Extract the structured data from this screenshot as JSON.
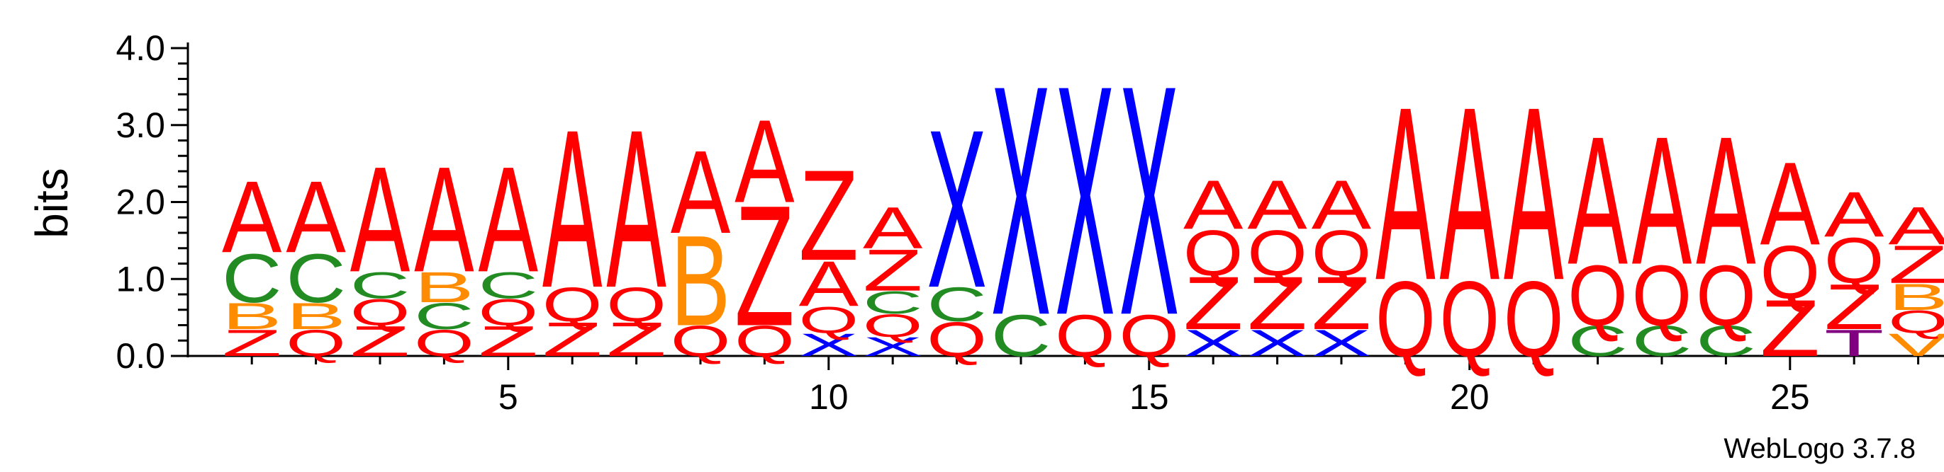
{
  "chart_data": {
    "type": "sequence-logo",
    "ylabel": "bits",
    "ylim": [
      0,
      4.0
    ],
    "yticks": [
      "0.0",
      "1.0",
      "2.0",
      "3.0",
      "4.0"
    ],
    "xticks": [
      5,
      10,
      15,
      20,
      25
    ],
    "credit": "WebLogo 3.7.8",
    "colors": {
      "A": "#ff0000",
      "Q": "#ff0000",
      "Z": "#ff0000",
      "B": "#ff8c00",
      "C": "#228b22",
      "X": "#0000ff",
      "T": "#800080",
      "V": "#ff8c00"
    },
    "positions": [
      {
        "pos": 1,
        "stack": [
          {
            "letter": "Z",
            "bits": 0.35
          },
          {
            "letter": "B",
            "bits": 0.35
          },
          {
            "letter": "C",
            "bits": 0.65
          },
          {
            "letter": "A",
            "bits": 0.95
          }
        ]
      },
      {
        "pos": 2,
        "stack": [
          {
            "letter": "Q",
            "bits": 0.35
          },
          {
            "letter": "B",
            "bits": 0.35
          },
          {
            "letter": "C",
            "bits": 0.65
          },
          {
            "letter": "A",
            "bits": 0.95
          }
        ]
      },
      {
        "pos": 3,
        "stack": [
          {
            "letter": "Z",
            "bits": 0.4
          },
          {
            "letter": "Q",
            "bits": 0.35
          },
          {
            "letter": "C",
            "bits": 0.35
          },
          {
            "letter": "A",
            "bits": 1.4
          }
        ]
      },
      {
        "pos": 4,
        "stack": [
          {
            "letter": "Q",
            "bits": 0.35
          },
          {
            "letter": "C",
            "bits": 0.35
          },
          {
            "letter": "B",
            "bits": 0.4
          },
          {
            "letter": "A",
            "bits": 1.4
          }
        ]
      },
      {
        "pos": 5,
        "stack": [
          {
            "letter": "Z",
            "bits": 0.4
          },
          {
            "letter": "Q",
            "bits": 0.35
          },
          {
            "letter": "C",
            "bits": 0.35
          },
          {
            "letter": "A",
            "bits": 1.4
          }
        ]
      },
      {
        "pos": 6,
        "stack": [
          {
            "letter": "Z",
            "bits": 0.45
          },
          {
            "letter": "Q",
            "bits": 0.45
          },
          {
            "letter": "A",
            "bits": 2.1
          }
        ]
      },
      {
        "pos": 7,
        "stack": [
          {
            "letter": "Z",
            "bits": 0.45
          },
          {
            "letter": "Q",
            "bits": 0.45
          },
          {
            "letter": "A",
            "bits": 2.1
          }
        ]
      },
      {
        "pos": 8,
        "stack": [
          {
            "letter": "Q",
            "bits": 0.4
          },
          {
            "letter": "B",
            "bits": 1.2
          },
          {
            "letter": "A",
            "bits": 1.1
          }
        ]
      },
      {
        "pos": 9,
        "stack": [
          {
            "letter": "Q",
            "bits": 0.4
          },
          {
            "letter": "Z",
            "bits": 1.6
          },
          {
            "letter": "A",
            "bits": 1.1
          }
        ]
      },
      {
        "pos": 10,
        "stack": [
          {
            "letter": "X",
            "bits": 0.3
          },
          {
            "letter": "Q",
            "bits": 0.35
          },
          {
            "letter": "A",
            "bits": 0.6
          },
          {
            "letter": "Z",
            "bits": 1.2
          }
        ]
      },
      {
        "pos": 11,
        "stack": [
          {
            "letter": "X",
            "bits": 0.25
          },
          {
            "letter": "Q",
            "bits": 0.3
          },
          {
            "letter": "C",
            "bits": 0.3
          },
          {
            "letter": "Z",
            "bits": 0.55
          },
          {
            "letter": "A",
            "bits": 0.55
          }
        ]
      },
      {
        "pos": 12,
        "stack": [
          {
            "letter": "Q",
            "bits": 0.45
          },
          {
            "letter": "C",
            "bits": 0.45
          },
          {
            "letter": "X",
            "bits": 2.1
          }
        ]
      },
      {
        "pos": 13,
        "stack": [
          {
            "letter": "C",
            "bits": 0.55
          },
          {
            "letter": "X",
            "bits": 3.05
          }
        ]
      },
      {
        "pos": 14,
        "stack": [
          {
            "letter": "Q",
            "bits": 0.55
          },
          {
            "letter": "X",
            "bits": 3.05
          }
        ]
      },
      {
        "pos": 15,
        "stack": [
          {
            "letter": "Q",
            "bits": 0.55
          },
          {
            "letter": "X",
            "bits": 3.05
          }
        ]
      },
      {
        "pos": 16,
        "stack": [
          {
            "letter": "X",
            "bits": 0.35
          },
          {
            "letter": "Z",
            "bits": 0.7
          },
          {
            "letter": "Q",
            "bits": 0.6
          },
          {
            "letter": "A",
            "bits": 0.65
          }
        ]
      },
      {
        "pos": 17,
        "stack": [
          {
            "letter": "X",
            "bits": 0.35
          },
          {
            "letter": "Z",
            "bits": 0.7
          },
          {
            "letter": "Q",
            "bits": 0.6
          },
          {
            "letter": "A",
            "bits": 0.65
          }
        ]
      },
      {
        "pos": 18,
        "stack": [
          {
            "letter": "X",
            "bits": 0.35
          },
          {
            "letter": "Z",
            "bits": 0.7
          },
          {
            "letter": "Q",
            "bits": 0.6
          },
          {
            "letter": "A",
            "bits": 0.65
          }
        ]
      },
      {
        "pos": 19,
        "stack": [
          {
            "letter": "Q",
            "bits": 1.0
          },
          {
            "letter": "A",
            "bits": 2.3
          }
        ]
      },
      {
        "pos": 20,
        "stack": [
          {
            "letter": "Q",
            "bits": 1.0
          },
          {
            "letter": "A",
            "bits": 2.3
          }
        ]
      },
      {
        "pos": 21,
        "stack": [
          {
            "letter": "Q",
            "bits": 1.0
          },
          {
            "letter": "A",
            "bits": 2.3
          }
        ]
      },
      {
        "pos": 22,
        "stack": [
          {
            "letter": "C",
            "bits": 0.4
          },
          {
            "letter": "Q",
            "bits": 0.8
          },
          {
            "letter": "A",
            "bits": 1.7
          }
        ]
      },
      {
        "pos": 23,
        "stack": [
          {
            "letter": "C",
            "bits": 0.4
          },
          {
            "letter": "Q",
            "bits": 0.8
          },
          {
            "letter": "A",
            "bits": 1.7
          }
        ]
      },
      {
        "pos": 24,
        "stack": [
          {
            "letter": "C",
            "bits": 0.4
          },
          {
            "letter": "Q",
            "bits": 0.8
          },
          {
            "letter": "A",
            "bits": 1.7
          }
        ]
      },
      {
        "pos": 25,
        "stack": [
          {
            "letter": "Z",
            "bits": 0.75
          },
          {
            "letter": "Q",
            "bits": 0.7
          },
          {
            "letter": "A",
            "bits": 1.1
          }
        ]
      },
      {
        "pos": 26,
        "stack": [
          {
            "letter": "T",
            "bits": 0.35
          },
          {
            "letter": "Z",
            "bits": 0.6
          },
          {
            "letter": "Q",
            "bits": 0.6
          },
          {
            "letter": "A",
            "bits": 0.6
          }
        ]
      },
      {
        "pos": 27,
        "stack": [
          {
            "letter": "V",
            "bits": 0.3
          },
          {
            "letter": "Q",
            "bits": 0.3
          },
          {
            "letter": "B",
            "bits": 0.35
          },
          {
            "letter": "Z",
            "bits": 0.5
          },
          {
            "letter": "A",
            "bits": 0.5
          }
        ]
      }
    ]
  }
}
